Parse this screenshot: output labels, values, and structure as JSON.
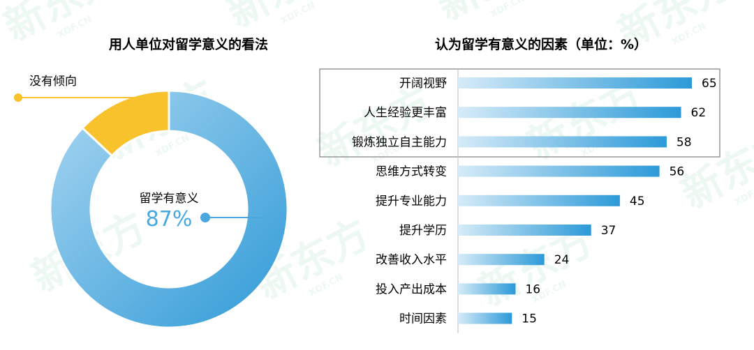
{
  "watermark": {
    "text": "新东方",
    "sub": "XDF.CN"
  },
  "chart_data": [
    {
      "type": "pie",
      "donut": true,
      "title": "用人单位对留学意义的看法",
      "slices": [
        {
          "label": "留学有意义",
          "value": 87,
          "display": "87%",
          "color": "#49a8e0"
        },
        {
          "label": "没有倾向",
          "value": 13,
          "color": "#f7c22c"
        }
      ]
    },
    {
      "type": "bar",
      "orientation": "horizontal",
      "title": "认为留学有意义的因素（单位：%）",
      "categories": [
        "开阔视野",
        "人生经验更丰富",
        "锻炼独立自主能力",
        "思维方式转变",
        "提升专业能力",
        "提升学历",
        "改善收入水平",
        "投入产出成本",
        "时间因素"
      ],
      "values": [
        65,
        62,
        58,
        56,
        45,
        37,
        24,
        16,
        15
      ],
      "highlighted_top": 3,
      "xlim": [
        0,
        70
      ],
      "bar_gradient": [
        "#d6ebf8",
        "#2c9ad8"
      ]
    }
  ]
}
